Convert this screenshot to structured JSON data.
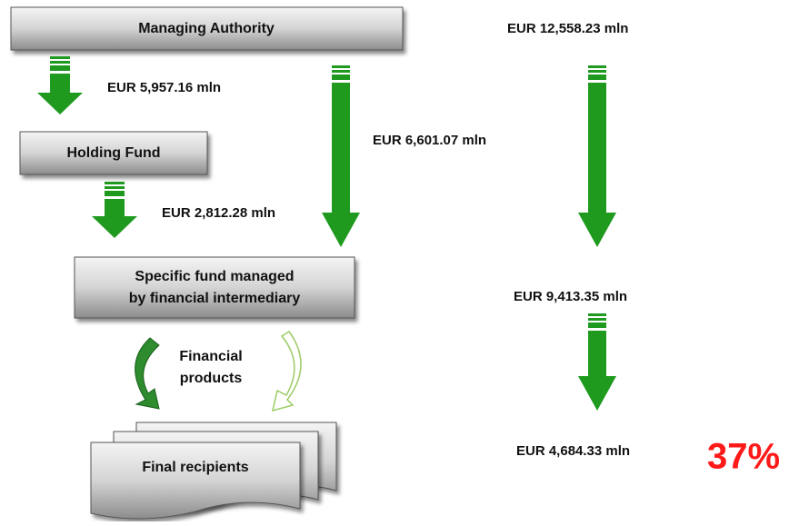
{
  "nodes": [
    {
      "label": "Managing Authority"
    },
    {
      "label": "Holding Fund"
    },
    {
      "label": "Specific fund managed",
      "label2": "by financial intermediary"
    },
    {
      "label": "Final recipients"
    }
  ],
  "products": {
    "line1": "Financial",
    "line2": "products"
  },
  "flows": [
    "EUR 5,957.16 mln",
    "EUR 6,601.07 mln",
    "EUR 2,812.28 mln"
  ],
  "totals": [
    "EUR 12,558.23 mln",
    "EUR 9,413.35 mln",
    "EUR 4,684.33 mln"
  ],
  "share": "37%"
}
